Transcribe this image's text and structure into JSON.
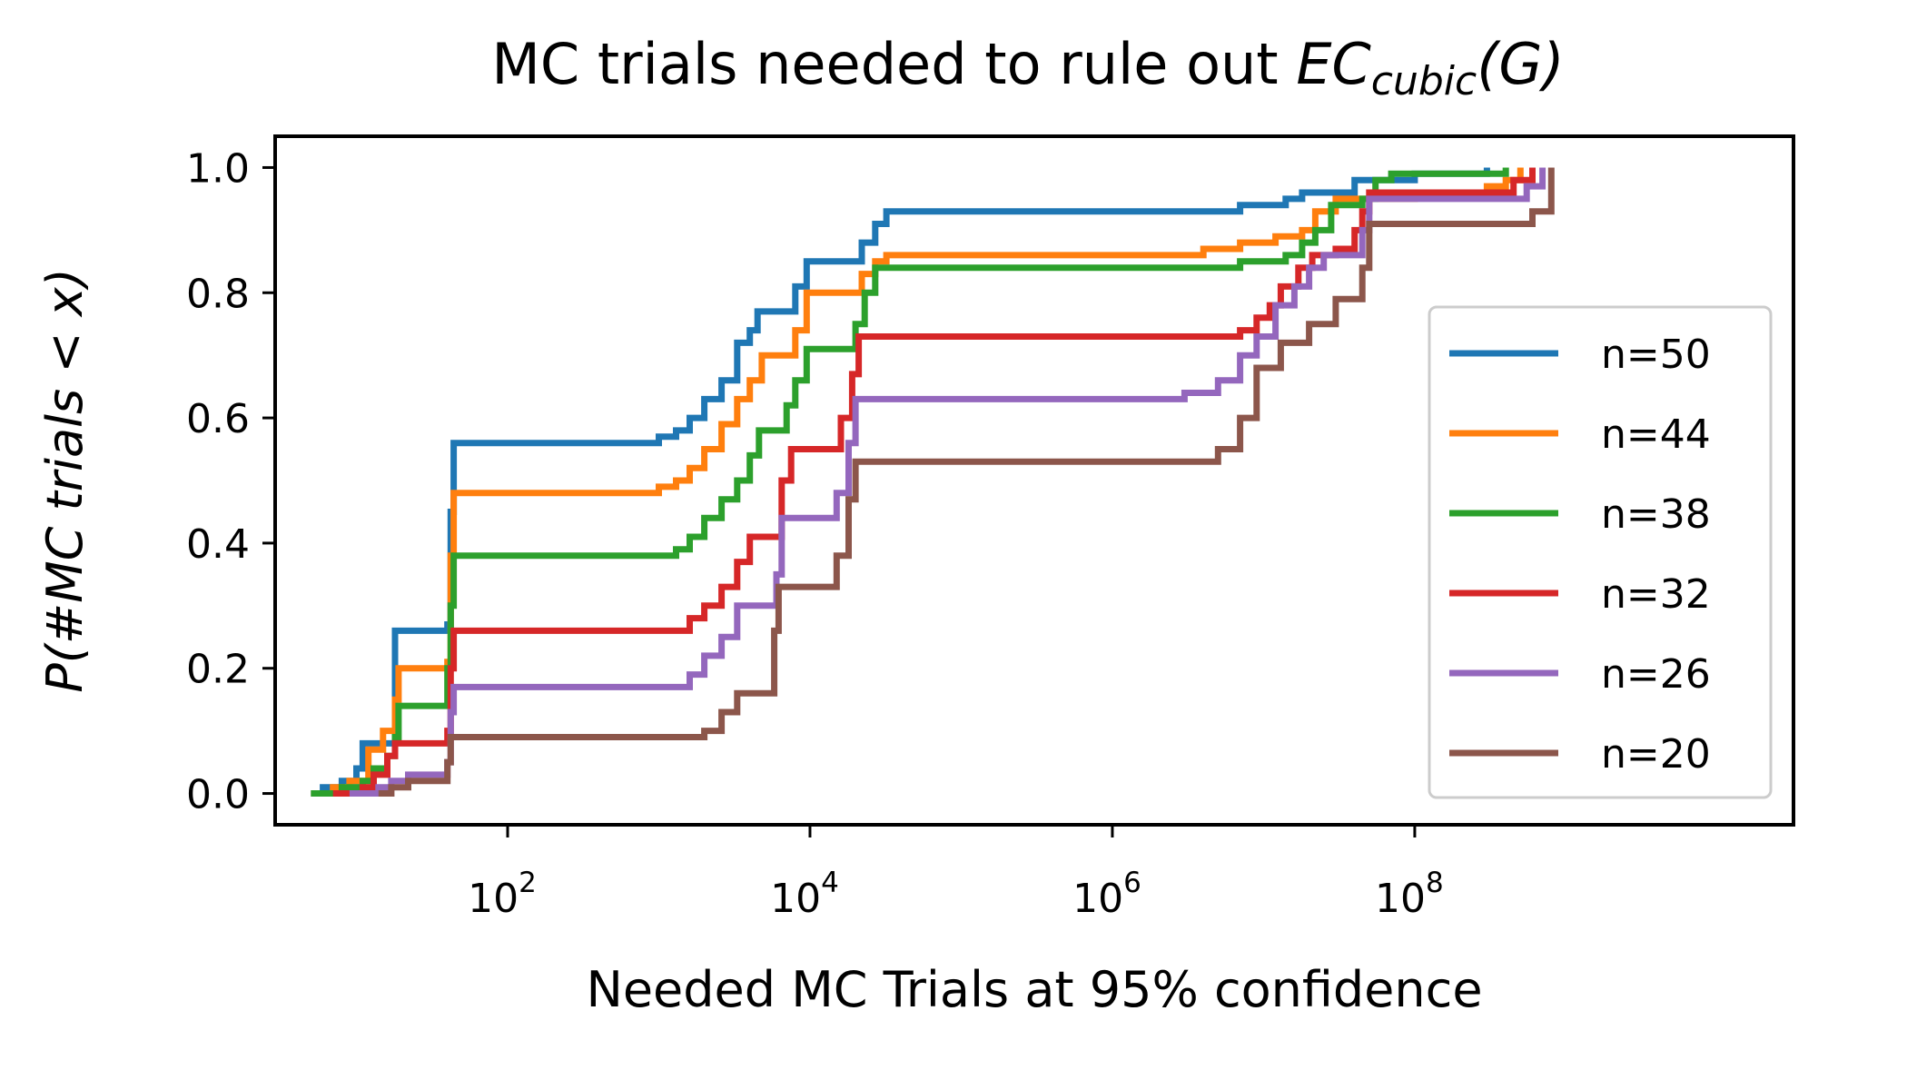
{
  "chart_data": {
    "type": "line",
    "title": {
      "prefix": "MC trials needed to rule out ",
      "math_main": "EC",
      "math_sub": "cubic",
      "math_rest": "(G)"
    },
    "xlabel": "Needed MC Trials at 95% confidence",
    "ylabel": "P(#MC trials < x)",
    "x_scale": "log",
    "xlim": [
      2.9,
      32000000000
    ],
    "ylim": [
      -0.05,
      1.05
    ],
    "x_ticks": [
      {
        "value": 100,
        "base": "10",
        "exp": "2"
      },
      {
        "value": 10000,
        "base": "10",
        "exp": "4"
      },
      {
        "value": 1000000,
        "base": "10",
        "exp": "6"
      },
      {
        "value": 100000000,
        "base": "10",
        "exp": "8"
      }
    ],
    "y_ticks": [
      {
        "value": 0.0,
        "label": "0.0"
      },
      {
        "value": 0.2,
        "label": "0.2"
      },
      {
        "value": 0.4,
        "label": "0.4"
      },
      {
        "value": 0.6,
        "label": "0.6"
      },
      {
        "value": 0.8,
        "label": "0.8"
      },
      {
        "value": 1.0,
        "label": "1.0"
      }
    ],
    "grid": false,
    "legend_position": "right",
    "series": [
      {
        "name": "n=50",
        "color": "#1f77b4",
        "points": [
          [
            5,
            0
          ],
          [
            6,
            0.01
          ],
          [
            8,
            0.02
          ],
          [
            10,
            0.04
          ],
          [
            11,
            0.08
          ],
          [
            16,
            0.08
          ],
          [
            18,
            0.26
          ],
          [
            30,
            0.26
          ],
          [
            40,
            0.27
          ],
          [
            42,
            0.45
          ],
          [
            44,
            0.56
          ],
          [
            800,
            0.56
          ],
          [
            1000,
            0.57
          ],
          [
            1300,
            0.58
          ],
          [
            1600,
            0.6
          ],
          [
            2000,
            0.63
          ],
          [
            2600,
            0.66
          ],
          [
            3300,
            0.72
          ],
          [
            4000,
            0.74
          ],
          [
            4500,
            0.77
          ],
          [
            7000,
            0.77
          ],
          [
            8000,
            0.81
          ],
          [
            9500,
            0.85
          ],
          [
            19000,
            0.85
          ],
          [
            22000,
            0.88
          ],
          [
            27000,
            0.91
          ],
          [
            32000,
            0.93
          ],
          [
            3000000,
            0.93
          ],
          [
            7000000,
            0.94
          ],
          [
            14000000,
            0.95
          ],
          [
            18000000,
            0.96
          ],
          [
            30000000,
            0.96
          ],
          [
            40000000,
            0.98
          ],
          [
            100000000,
            0.99
          ],
          [
            300000000,
            1.0
          ]
        ]
      },
      {
        "name": "n=44",
        "color": "#ff7f0e",
        "points": [
          [
            5,
            0
          ],
          [
            7,
            0.01
          ],
          [
            9,
            0.02
          ],
          [
            12,
            0.07
          ],
          [
            15,
            0.1
          ],
          [
            18,
            0.15
          ],
          [
            19,
            0.2
          ],
          [
            30,
            0.2
          ],
          [
            40,
            0.21
          ],
          [
            42,
            0.38
          ],
          [
            44,
            0.48
          ],
          [
            900,
            0.48
          ],
          [
            1000,
            0.49
          ],
          [
            1300,
            0.5
          ],
          [
            1600,
            0.52
          ],
          [
            2000,
            0.55
          ],
          [
            2600,
            0.59
          ],
          [
            3300,
            0.63
          ],
          [
            4000,
            0.66
          ],
          [
            4800,
            0.7
          ],
          [
            7000,
            0.7
          ],
          [
            8000,
            0.74
          ],
          [
            9500,
            0.8
          ],
          [
            19000,
            0.8
          ],
          [
            22000,
            0.83
          ],
          [
            27000,
            0.85
          ],
          [
            32000,
            0.86
          ],
          [
            2000000,
            0.86
          ],
          [
            4000000,
            0.87
          ],
          [
            7000000,
            0.88
          ],
          [
            12000000,
            0.89
          ],
          [
            18000000,
            0.9
          ],
          [
            22000000,
            0.93
          ],
          [
            30000000,
            0.95
          ],
          [
            100000000,
            0.96
          ],
          [
            300000000,
            0.97
          ],
          [
            400000000,
            0.98
          ],
          [
            500000000,
            1.0
          ]
        ]
      },
      {
        "name": "n=38",
        "color": "#2ca02c",
        "points": [
          [
            5,
            0
          ],
          [
            8,
            0.01
          ],
          [
            11,
            0.02
          ],
          [
            13,
            0.04
          ],
          [
            16,
            0.06
          ],
          [
            18,
            0.09
          ],
          [
            19,
            0.14
          ],
          [
            30,
            0.14
          ],
          [
            40,
            0.2
          ],
          [
            42,
            0.3
          ],
          [
            44,
            0.38
          ],
          [
            1000,
            0.38
          ],
          [
            1300,
            0.39
          ],
          [
            1600,
            0.41
          ],
          [
            2000,
            0.44
          ],
          [
            2600,
            0.47
          ],
          [
            3300,
            0.5
          ],
          [
            4000,
            0.54
          ],
          [
            4600,
            0.58
          ],
          [
            6000,
            0.58
          ],
          [
            7000,
            0.62
          ],
          [
            8000,
            0.66
          ],
          [
            9500,
            0.71
          ],
          [
            17000,
            0.71
          ],
          [
            20000,
            0.75
          ],
          [
            23000,
            0.8
          ],
          [
            27000,
            0.84
          ],
          [
            4000000,
            0.84
          ],
          [
            7000000,
            0.85
          ],
          [
            14000000,
            0.86
          ],
          [
            18000000,
            0.88
          ],
          [
            22000000,
            0.9
          ],
          [
            28000000,
            0.94
          ],
          [
            45000000,
            0.95
          ],
          [
            55000000,
            0.98
          ],
          [
            70000000,
            0.99
          ],
          [
            300000000,
            0.99
          ],
          [
            400000000,
            1.0
          ]
        ]
      },
      {
        "name": "n=32",
        "color": "#d62728",
        "points": [
          [
            7,
            0
          ],
          [
            11,
            0.01
          ],
          [
            13,
            0.03
          ],
          [
            16,
            0.06
          ],
          [
            18,
            0.08
          ],
          [
            30,
            0.08
          ],
          [
            40,
            0.1
          ],
          [
            42,
            0.2
          ],
          [
            44,
            0.26
          ],
          [
            1200,
            0.26
          ],
          [
            1600,
            0.28
          ],
          [
            2000,
            0.3
          ],
          [
            2600,
            0.33
          ],
          [
            3300,
            0.37
          ],
          [
            4000,
            0.41
          ],
          [
            5500,
            0.41
          ],
          [
            6500,
            0.5
          ],
          [
            7500,
            0.55
          ],
          [
            13000,
            0.55
          ],
          [
            16000,
            0.6
          ],
          [
            19000,
            0.67
          ],
          [
            21000,
            0.73
          ],
          [
            5000000,
            0.73
          ],
          [
            7000000,
            0.74
          ],
          [
            9000000,
            0.76
          ],
          [
            11000000,
            0.78
          ],
          [
            13000000,
            0.81
          ],
          [
            17000000,
            0.84
          ],
          [
            21000000,
            0.86
          ],
          [
            30000000,
            0.87
          ],
          [
            40000000,
            0.9
          ],
          [
            45000000,
            0.93
          ],
          [
            50000000,
            0.96
          ],
          [
            300000000,
            0.96
          ],
          [
            450000000,
            0.98
          ],
          [
            600000000,
            1.0
          ]
        ]
      },
      {
        "name": "n=26",
        "color": "#9467bd",
        "points": [
          [
            9,
            0
          ],
          [
            14,
            0.01
          ],
          [
            17,
            0.02
          ],
          [
            22,
            0.03
          ],
          [
            30,
            0.03
          ],
          [
            40,
            0.05
          ],
          [
            42,
            0.13
          ],
          [
            44,
            0.17
          ],
          [
            1300,
            0.17
          ],
          [
            1600,
            0.19
          ],
          [
            2000,
            0.22
          ],
          [
            2600,
            0.25
          ],
          [
            3300,
            0.3
          ],
          [
            5500,
            0.3
          ],
          [
            6000,
            0.35
          ],
          [
            6500,
            0.44
          ],
          [
            12000,
            0.44
          ],
          [
            15000,
            0.48
          ],
          [
            18000,
            0.56
          ],
          [
            20000,
            0.63
          ],
          [
            2000000,
            0.63
          ],
          [
            3000000,
            0.64
          ],
          [
            5000000,
            0.66
          ],
          [
            7000000,
            0.7
          ],
          [
            9000000,
            0.73
          ],
          [
            12000000,
            0.78
          ],
          [
            16000000,
            0.81
          ],
          [
            20000000,
            0.84
          ],
          [
            25000000,
            0.86
          ],
          [
            40000000,
            0.86
          ],
          [
            45000000,
            0.9
          ],
          [
            50000000,
            0.95
          ],
          [
            400000000,
            0.95
          ],
          [
            550000000,
            0.97
          ],
          [
            700000000,
            1.0
          ]
        ]
      },
      {
        "name": "n=20",
        "color": "#8c564b",
        "points": [
          [
            14,
            0
          ],
          [
            17,
            0.01
          ],
          [
            22,
            0.02
          ],
          [
            30,
            0.02
          ],
          [
            40,
            0.05
          ],
          [
            42,
            0.09
          ],
          [
            1500,
            0.09
          ],
          [
            2000,
            0.1
          ],
          [
            2600,
            0.13
          ],
          [
            3300,
            0.16
          ],
          [
            5200,
            0.16
          ],
          [
            5800,
            0.26
          ],
          [
            6200,
            0.33
          ],
          [
            12000,
            0.33
          ],
          [
            15000,
            0.38
          ],
          [
            18000,
            0.47
          ],
          [
            20000,
            0.53
          ],
          [
            3000000,
            0.53
          ],
          [
            5000000,
            0.55
          ],
          [
            7000000,
            0.6
          ],
          [
            9000000,
            0.68
          ],
          [
            13000000,
            0.72
          ],
          [
            20000000,
            0.75
          ],
          [
            30000000,
            0.79
          ],
          [
            45000000,
            0.84
          ],
          [
            50000000,
            0.91
          ],
          [
            500000000,
            0.91
          ],
          [
            600000000,
            0.93
          ],
          [
            800000000,
            1.0
          ]
        ]
      }
    ]
  }
}
